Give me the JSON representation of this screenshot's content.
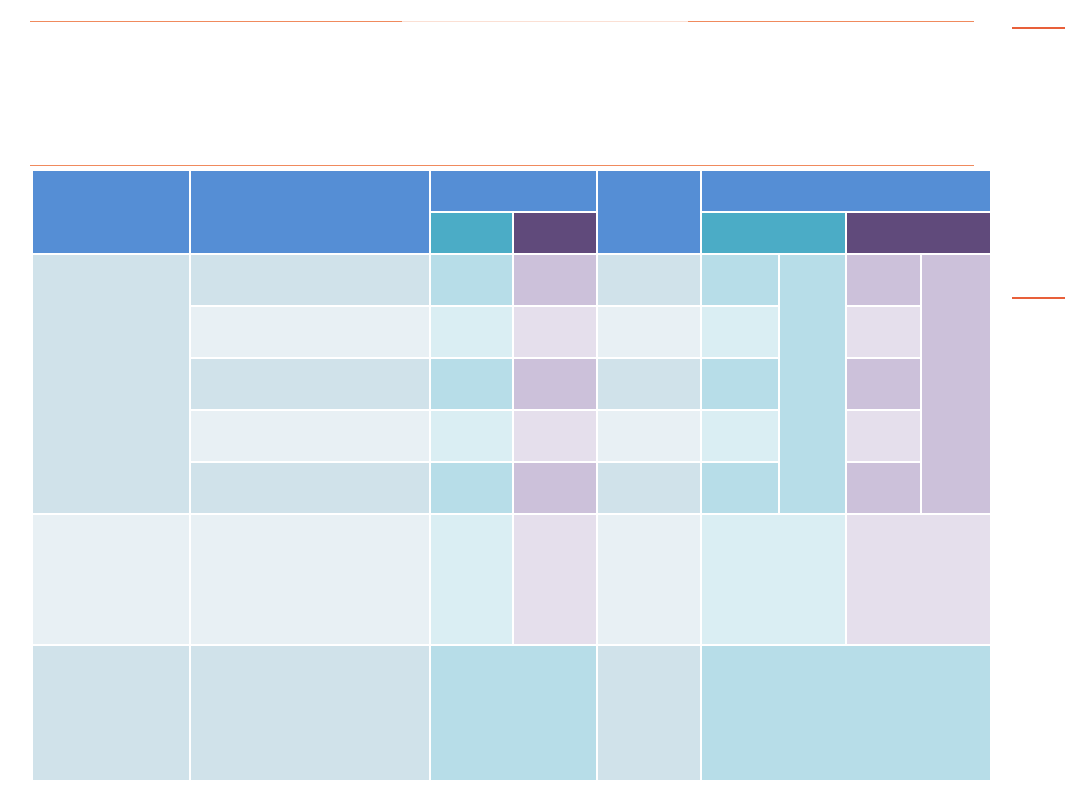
{
  "slide": {
    "title": ""
  },
  "colors": {
    "header_blue": "#558ed5",
    "header_teal": "#4bacc6",
    "header_purple": "#604a7b",
    "accent_rule": "#f08a5d",
    "row_blue": "#d0e2ea",
    "row_teal": "#b7dde8",
    "row_purple": "#ccc1da"
  },
  "table": {
    "cells": []
  }
}
